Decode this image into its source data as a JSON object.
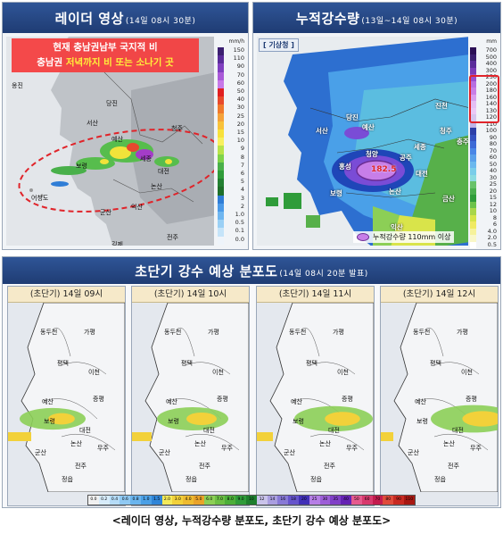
{
  "radar": {
    "title": "레이더 영상",
    "subtitle": "(14일 08시 30분)",
    "callout_line1": "현재 충남권남부 국지적 비",
    "callout_line2_a": "충남권 ",
    "callout_line2_b": "저녁까지 비 또는 소나기 곳",
    "unit": "mm/h",
    "legend": [
      "150",
      "110",
      "90",
      "70",
      "60",
      "50",
      "40",
      "30",
      "25",
      "20",
      "15",
      "10",
      "9",
      "8",
      "7",
      "6",
      "5",
      "4",
      "3",
      "2",
      "1.0",
      "0.5",
      "0.1",
      "0.0"
    ],
    "cities": [
      "옹진",
      "당진",
      "서산",
      "예산",
      "청주",
      "보령",
      "논산",
      "대전",
      "세종",
      "어청도",
      "군산",
      "김제",
      "익산",
      "전주"
    ]
  },
  "accum": {
    "title": "누적강수량",
    "subtitle": "(13일~14일 08시 30분)",
    "agency": "[ 기상청 ]",
    "unit": "mm",
    "legend": [
      "700",
      "500",
      "400",
      "300",
      "250",
      "200",
      "180",
      "160",
      "140",
      "130",
      "120",
      "110",
      "100",
      "90",
      "80",
      "70",
      "60",
      "50",
      "40",
      "30",
      "25",
      "20",
      "15",
      "12",
      "10",
      "8",
      "6",
      "4.0",
      "2.0",
      "0.5"
    ],
    "peak_value": "182.5",
    "note": "누적강수량 110mm 이상",
    "cities": [
      "당진",
      "서산",
      "예산",
      "홍성",
      "보령",
      "청양",
      "공주",
      "세종",
      "청주",
      "대전",
      "논산",
      "금산",
      "익산",
      "진천",
      "충주"
    ]
  },
  "forecast": {
    "title": "초단기 강수 예상 분포도",
    "subtitle": "(14일 08시 20분 발표)",
    "frames": [
      {
        "label": "(초단기) 14일 09시"
      },
      {
        "label": "(초단기) 14일 10시"
      },
      {
        "label": "(초단기) 14일 11시"
      },
      {
        "label": "(초단기) 14일 12시"
      }
    ],
    "cities": [
      "동두천",
      "가평",
      "평택",
      "이천",
      "예산",
      "증평",
      "보령",
      "대전",
      "논산",
      "무주",
      "군산",
      "전주",
      "정읍"
    ],
    "legend": [
      "0.0",
      "0.2",
      "0.4",
      "0.6",
      "0.8",
      "1.0",
      "1.5",
      "2.0",
      "3.0",
      "4.0",
      "5.0",
      "6.0",
      "7.0",
      "8.0",
      "9.0",
      "10",
      "12",
      "14",
      "16",
      "18",
      "20",
      "25",
      "30",
      "35",
      "40",
      "50",
      "60",
      "70",
      "80",
      "90",
      "110"
    ]
  },
  "caption": "<레이더 영상, 누적강수량 분포도, 초단기 강수 예상 분포도>",
  "colors": {
    "header_blue": "#1f3c73",
    "callout_red": "#f53c3c",
    "highlight_red": "#e0242a",
    "rain_purple": "#c77ee8"
  }
}
